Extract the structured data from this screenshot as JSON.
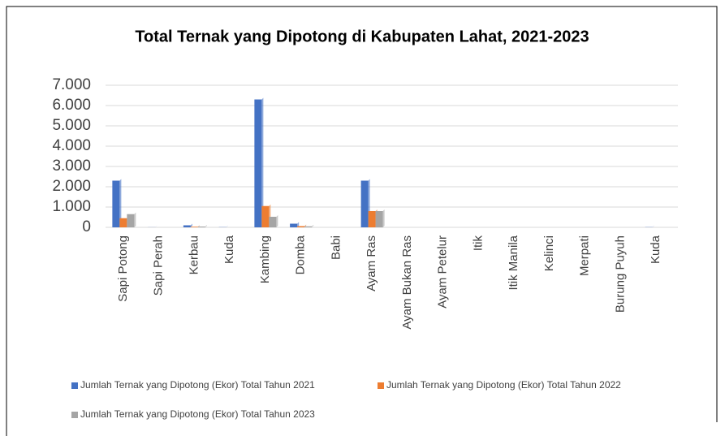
{
  "chart_data": {
    "type": "bar",
    "title": "Total Ternak yang Dipotong di Kabupaten Lahat, 2021-2023",
    "categories": [
      "Sapi Potong",
      "Sapi Perah",
      "Kerbau",
      "Kuda",
      "Kambing",
      "Domba",
      "Babi",
      "Ayam Ras",
      "Ayam Bukan Ras",
      "Ayam Petelur",
      "Itik",
      "Itik Manila",
      "Kelinci",
      "Merpati",
      "Burung Puyuh",
      "Kuda"
    ],
    "series": [
      {
        "name": "Jumlah Ternak yang Dipotong (Ekor) Total Tahun 2021",
        "color": "#4472c4",
        "values": [
          2300,
          5,
          100,
          10,
          6300,
          180,
          0,
          2300,
          0,
          0,
          0,
          0,
          0,
          0,
          0,
          10
        ]
      },
      {
        "name": "Jumlah Ternak yang Dipotong (Ekor) Total Tahun 2022",
        "color": "#ed7d31",
        "values": [
          450,
          0,
          30,
          0,
          1050,
          60,
          0,
          800,
          0,
          0,
          0,
          0,
          0,
          0,
          0,
          0
        ]
      },
      {
        "name": "Jumlah Ternak yang Dipotong (Ekor) Total Tahun 2023",
        "color": "#a5a5a5",
        "values": [
          650,
          0,
          40,
          0,
          520,
          50,
          0,
          800,
          0,
          0,
          0,
          0,
          0,
          0,
          0,
          0
        ]
      }
    ],
    "ylim": [
      0,
      7000
    ],
    "yticks": [
      0,
      {
        "value": 1000,
        "label": "1.000"
      },
      {
        "value": 2000,
        "label": "2.000"
      },
      {
        "value": 3000,
        "label": "3.000"
      },
      {
        "value": 4000,
        "label": "4.000"
      },
      {
        "value": 5000,
        "label": "5.000"
      },
      {
        "value": 6000,
        "label": "6.000"
      },
      {
        "value": 7000,
        "label": "7.000"
      }
    ],
    "grid": true
  }
}
